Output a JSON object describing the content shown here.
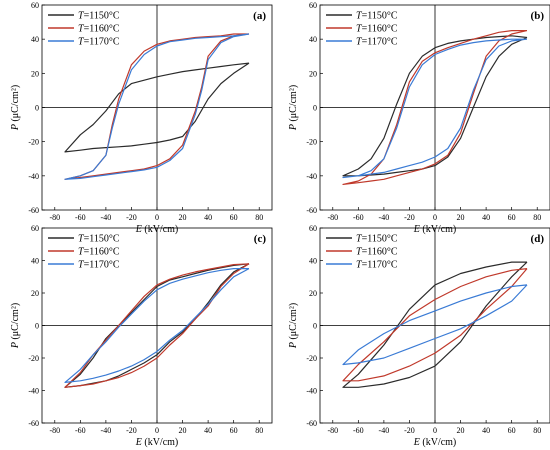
{
  "chart_data": [
    {
      "type": "line",
      "panel_label": "(a)",
      "xlabel": "E (kV/cm)",
      "ylabel": "P (μC/cm²)",
      "xlim": [
        -90,
        90
      ],
      "ylim": [
        -60,
        60
      ],
      "xticks": [
        -80,
        -60,
        -40,
        -20,
        0,
        20,
        40,
        60,
        80
      ],
      "yticks": [
        -60,
        -40,
        -20,
        0,
        20,
        40,
        60
      ],
      "legend_position": "top-left",
      "series": [
        {
          "name": "T=1150°C",
          "color": "#2b2b2b",
          "x": [
            72,
            60,
            50,
            40,
            30,
            20,
            10,
            0,
            -10,
            -20,
            -30,
            -40,
            -50,
            -60,
            -72,
            -72,
            -60,
            -50,
            -40,
            -30,
            -20,
            -10,
            0,
            10,
            20,
            30,
            40,
            50,
            60,
            72
          ],
          "y": [
            26,
            25,
            24,
            23,
            22,
            21,
            19.5,
            18,
            16,
            14,
            8,
            -2,
            -10,
            -16,
            -26,
            -26,
            -25,
            -24,
            -23.5,
            -23,
            -22.5,
            -21.5,
            -20.5,
            -19,
            -17,
            -8,
            5,
            14,
            20,
            26
          ]
        },
        {
          "name": "T=1160°C",
          "color": "#c0392b",
          "x": [
            72,
            60,
            50,
            40,
            30,
            20,
            10,
            0,
            -10,
            -20,
            -30,
            -35,
            -40,
            -50,
            -60,
            -72,
            -72,
            -60,
            -50,
            -40,
            -30,
            -20,
            -10,
            0,
            10,
            20,
            30,
            35,
            40,
            50,
            60,
            72
          ],
          "y": [
            43,
            43,
            42,
            41.5,
            41,
            40,
            39,
            37,
            33,
            25,
            5,
            -10,
            -28,
            -37,
            -40,
            -42,
            -42,
            -41,
            -40,
            -39,
            -38,
            -37,
            -36,
            -34,
            -30,
            -22,
            -2,
            12,
            30,
            39,
            42,
            43
          ]
        },
        {
          "name": "T=1170°C",
          "color": "#3a7bd5",
          "x": [
            72,
            60,
            50,
            40,
            30,
            20,
            10,
            0,
            -10,
            -20,
            -30,
            -35,
            -40,
            -50,
            -60,
            -72,
            -72,
            -60,
            -50,
            -40,
            -30,
            -20,
            -10,
            0,
            10,
            20,
            30,
            35,
            40,
            50,
            60,
            72
          ],
          "y": [
            43,
            42,
            41.5,
            41,
            40.5,
            39.5,
            38.5,
            36,
            31,
            22,
            2,
            -12,
            -28,
            -37,
            -40,
            -42,
            -42,
            -41.5,
            -40.5,
            -39.5,
            -38.5,
            -37.5,
            -36.5,
            -35,
            -31,
            -24,
            -4,
            10,
            28,
            38,
            41.5,
            43
          ]
        }
      ]
    },
    {
      "type": "line",
      "panel_label": "(b)",
      "xlabel": "E (kV/cm)",
      "ylabel": "P (μC/cm²)",
      "xlim": [
        -90,
        90
      ],
      "ylim": [
        -60,
        60
      ],
      "xticks": [
        -80,
        -60,
        -40,
        -20,
        0,
        20,
        40,
        60,
        80
      ],
      "yticks": [
        -60,
        -40,
        -20,
        0,
        20,
        40,
        60
      ],
      "legend_position": "top-left",
      "series": [
        {
          "name": "T=1150°C",
          "color": "#2b2b2b",
          "x": [
            72,
            60,
            50,
            40,
            30,
            20,
            10,
            0,
            -10,
            -20,
            -30,
            -40,
            -50,
            -60,
            -72,
            -72,
            -60,
            -50,
            -40,
            -30,
            -20,
            -10,
            0,
            10,
            20,
            30,
            40,
            50,
            60,
            72
          ],
          "y": [
            41,
            42,
            41.5,
            41,
            40,
            39,
            37.5,
            35,
            30,
            20,
            2,
            -18,
            -30,
            -36,
            -40,
            -40,
            -40,
            -39.5,
            -39,
            -38,
            -37,
            -36,
            -34,
            -29,
            -18,
            0,
            18,
            30,
            37,
            41
          ]
        },
        {
          "name": "T=1160°C",
          "color": "#c0392b",
          "x": [
            72,
            60,
            50,
            40,
            30,
            20,
            10,
            0,
            -10,
            -20,
            -30,
            -40,
            -50,
            -60,
            -72,
            -72,
            -60,
            -50,
            -40,
            -30,
            -20,
            -10,
            0,
            10,
            20,
            30,
            40,
            50,
            60,
            72
          ],
          "y": [
            45,
            45,
            44,
            42,
            40,
            37.5,
            35,
            32,
            27,
            15,
            -10,
            -30,
            -39,
            -43,
            -45,
            -45,
            -44,
            -43,
            -42,
            -40,
            -38,
            -36,
            -33,
            -28,
            -15,
            8,
            30,
            39,
            43,
            45
          ]
        },
        {
          "name": "T=1170°C",
          "color": "#3a7bd5",
          "x": [
            72,
            60,
            50,
            40,
            30,
            20,
            10,
            0,
            -10,
            -20,
            -30,
            -40,
            -50,
            -60,
            -72,
            -72,
            -60,
            -50,
            -40,
            -30,
            -20,
            -10,
            0,
            10,
            20,
            30,
            40,
            50,
            60,
            72
          ],
          "y": [
            40,
            40,
            39.5,
            39,
            38,
            36.5,
            34,
            31,
            25,
            12,
            -12,
            -30,
            -37,
            -40,
            -41,
            -41,
            -40,
            -39,
            -38,
            -36,
            -34,
            -32,
            -29,
            -24,
            -12,
            10,
            28,
            36,
            39,
            40
          ]
        }
      ]
    },
    {
      "type": "line",
      "panel_label": "(c)",
      "xlabel": "E (kV/cm)",
      "ylabel": "P (μC/cm²)",
      "xlim": [
        -90,
        90
      ],
      "ylim": [
        -60,
        60
      ],
      "xticks": [
        -80,
        -60,
        -40,
        -20,
        0,
        20,
        40,
        60,
        80
      ],
      "yticks": [
        -60,
        -40,
        -20,
        0,
        20,
        40,
        60
      ],
      "legend_position": "top-left",
      "series": [
        {
          "name": "T=1150°C",
          "color": "#2b2b2b",
          "x": [
            72,
            60,
            50,
            40,
            30,
            20,
            10,
            0,
            -10,
            -20,
            -30,
            -40,
            -50,
            -60,
            -72,
            -72,
            -60,
            -50,
            -40,
            -30,
            -20,
            -10,
            0,
            10,
            20,
            30,
            40,
            50,
            60,
            72
          ],
          "y": [
            38,
            37,
            35.5,
            34,
            32,
            30,
            28,
            24,
            16,
            8,
            0,
            -8,
            -20,
            -30,
            -38,
            -38,
            -37,
            -35.5,
            -34,
            -31,
            -27,
            -23,
            -18,
            -10,
            -4,
            4,
            14,
            25,
            33,
            38
          ]
        },
        {
          "name": "T=1160°C",
          "color": "#c0392b",
          "x": [
            72,
            60,
            50,
            40,
            30,
            20,
            10,
            0,
            -10,
            -20,
            -30,
            -40,
            -50,
            -60,
            -72,
            -72,
            -60,
            -50,
            -40,
            -30,
            -20,
            -10,
            0,
            10,
            20,
            30,
            40,
            50,
            60,
            72
          ],
          "y": [
            38,
            37.5,
            36,
            34.5,
            33,
            31,
            28.5,
            25,
            18,
            9,
            0,
            -9,
            -18,
            -29,
            -38,
            -38,
            -37,
            -36,
            -34,
            -32,
            -29,
            -25,
            -20,
            -12,
            -5,
            4,
            12,
            24,
            32,
            38
          ]
        },
        {
          "name": "T=1170°C",
          "color": "#3a7bd5",
          "x": [
            72,
            60,
            50,
            40,
            30,
            20,
            10,
            0,
            -10,
            -20,
            -30,
            -40,
            -50,
            -60,
            -72,
            -72,
            -60,
            -50,
            -40,
            -30,
            -20,
            -10,
            0,
            10,
            20,
            30,
            40,
            50,
            60,
            72
          ],
          "y": [
            35,
            35,
            34,
            32.5,
            30.5,
            28.5,
            26,
            22,
            15,
            7,
            -1,
            -10,
            -18,
            -27,
            -35,
            -35,
            -34,
            -32.5,
            -30.5,
            -28,
            -25,
            -21,
            -16,
            -9,
            -3,
            5,
            13,
            22,
            30,
            35
          ]
        }
      ]
    },
    {
      "type": "line",
      "panel_label": "(d)",
      "xlabel": "E (kV/cm)",
      "ylabel": "P (μC/cm²)",
      "xlim": [
        -90,
        90
      ],
      "ylim": [
        -60,
        60
      ],
      "xticks": [
        -80,
        -60,
        -40,
        -20,
        0,
        20,
        40,
        60,
        80
      ],
      "yticks": [
        -60,
        -40,
        -20,
        0,
        20,
        40,
        60
      ],
      "legend_position": "top-left",
      "series": [
        {
          "name": "T=1150°C",
          "color": "#2b2b2b",
          "x": [
            72,
            60,
            40,
            20,
            0,
            -20,
            -40,
            -60,
            -72,
            -72,
            -60,
            -40,
            -20,
            0,
            20,
            40,
            60,
            72
          ],
          "y": [
            39,
            39,
            36,
            32,
            25,
            10,
            -12,
            -30,
            -38,
            -38,
            -38,
            -36,
            -32,
            -25,
            -10,
            12,
            30,
            39
          ]
        },
        {
          "name": "T=1160°C",
          "color": "#c0392b",
          "x": [
            72,
            60,
            40,
            20,
            0,
            -20,
            -40,
            -60,
            -72,
            -72,
            -60,
            -40,
            -20,
            0,
            20,
            40,
            60,
            72
          ],
          "y": [
            35,
            34,
            30,
            24,
            16,
            6,
            -10,
            -24,
            -34,
            -34,
            -34,
            -31,
            -25,
            -17,
            -6,
            10,
            24,
            35
          ]
        },
        {
          "name": "T=1170°C",
          "color": "#3a7bd5",
          "x": [
            72,
            60,
            40,
            20,
            0,
            -20,
            -40,
            -60,
            -72,
            -72,
            -60,
            -40,
            -20,
            0,
            20,
            40,
            60,
            72
          ],
          "y": [
            25,
            24,
            20,
            15,
            9,
            3,
            -5,
            -15,
            -24,
            -24,
            -23,
            -20,
            -14,
            -8,
            -2,
            6,
            15,
            25
          ]
        }
      ]
    }
  ]
}
